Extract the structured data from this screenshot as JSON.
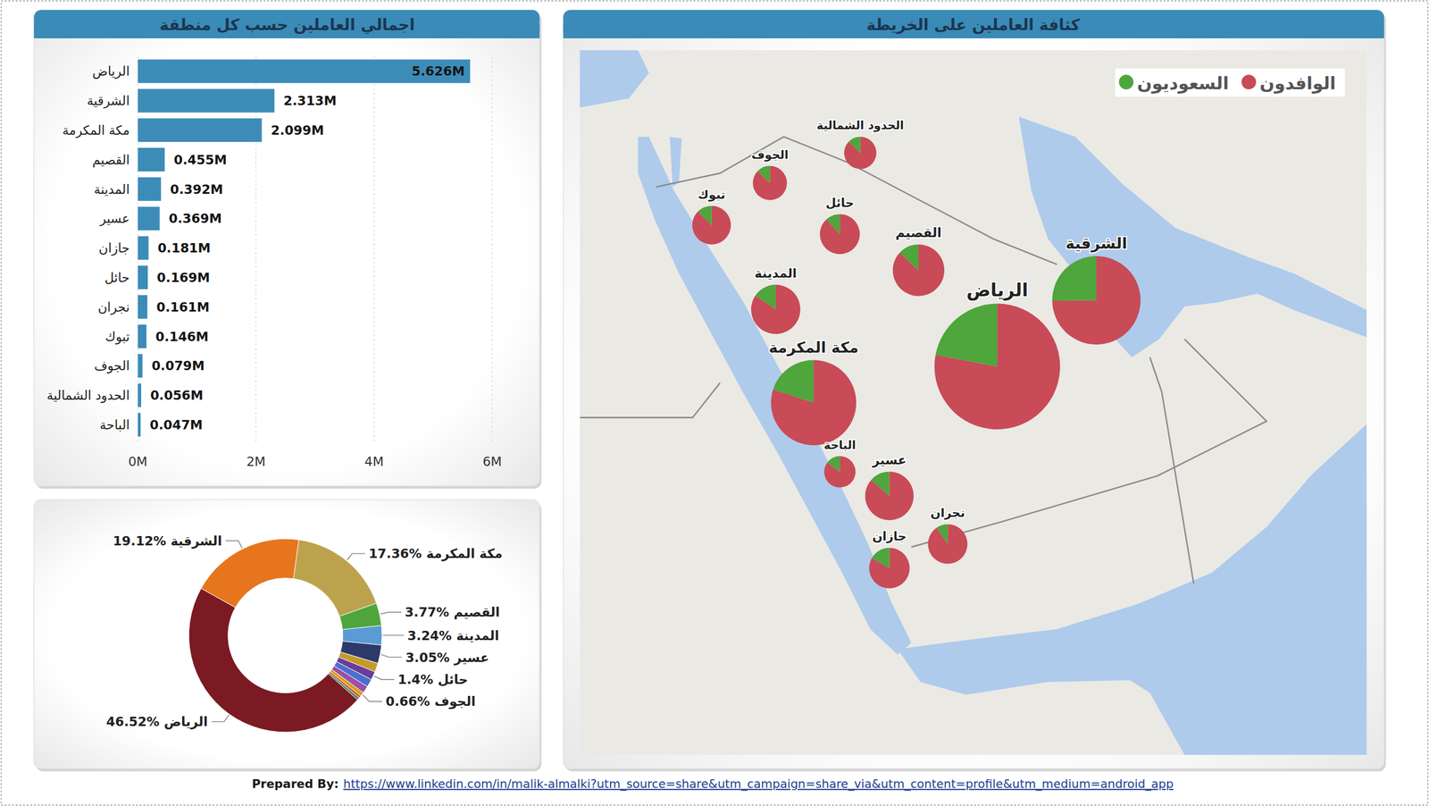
{
  "chart_data": [
    {
      "type": "bar",
      "title": "اجمالي العاملين حسب كل منطقة",
      "orientation": "horizontal",
      "categories": [
        "الرياض",
        "الشرقية",
        "مكة المكرمة",
        "القصيم",
        "المدينة",
        "عسير",
        "جازان",
        "حائل",
        "نجران",
        "تبوك",
        "الجوف",
        "الحدود الشمالية",
        "الباحة"
      ],
      "values": [
        5.626,
        2.313,
        2.099,
        0.455,
        0.392,
        0.369,
        0.181,
        0.169,
        0.161,
        0.146,
        0.079,
        0.056,
        0.047
      ],
      "value_labels": [
        "5.626M",
        "2.313M",
        "2.099M",
        "0.455M",
        "0.392M",
        "0.369M",
        "0.181M",
        "0.169M",
        "0.161M",
        "0.146M",
        "0.079M",
        "0.056M",
        "0.047M"
      ],
      "color": "#3d8cb8",
      "xlim": [
        0,
        6
      ],
      "xticks": [
        {
          "value": 0,
          "label": "0M"
        },
        {
          "value": 2,
          "label": "2M"
        },
        {
          "value": 4,
          "label": "4M"
        },
        {
          "value": 6,
          "label": "6M"
        }
      ],
      "grid": true,
      "data_labels": true
    },
    {
      "type": "donut",
      "categories": [
        "مكة المكرمة",
        "القصيم",
        "المدينة",
        "عسير",
        null,
        "حائل",
        null,
        null,
        "الجوف",
        null,
        null,
        "الرياض",
        "الشرقية"
      ],
      "values": [
        17.36,
        3.77,
        3.24,
        3.05,
        1.5,
        1.4,
        1.33,
        1.21,
        0.66,
        0.46,
        0.39,
        46.52,
        19.12
      ],
      "value_labels": [
        "17.36%",
        "3.77%",
        "3.24%",
        "3.05%",
        null,
        "1.4%",
        null,
        null,
        "0.66%",
        null,
        null,
        "46.52%",
        "19.12%"
      ],
      "colors": [
        "#bda24e",
        "#4ea63c",
        "#5b9bd5",
        "#2b3a6b",
        "#c49a2a",
        "#6a3d9a",
        "#4a6fd0",
        "#9b4fa8",
        "#d4a017",
        "#e05a2b",
        "#1f8a7a",
        "#7b1a22",
        "#e7751d"
      ],
      "data_labels": true
    },
    {
      "type": "map_pie",
      "title": "كثافة العاملين على الخريطة",
      "categories": [
        "الرياض",
        "الشرقية",
        "مكة المكرمة",
        "القصيم",
        "المدينة",
        "عسير",
        "جازان",
        "حائل",
        "نجران",
        "تبوك",
        "الجوف",
        "الحدود الشمالية",
        "الباحة"
      ],
      "lon": [
        46.7,
        50.1,
        40.4,
        44.0,
        39.1,
        43.0,
        43.0,
        41.3,
        45.0,
        36.9,
        38.9,
        42.0,
        41.3
      ],
      "lat": [
        24.7,
        26.9,
        23.5,
        27.9,
        26.6,
        20.4,
        18.0,
        29.1,
        18.8,
        29.4,
        30.8,
        31.8,
        21.2
      ],
      "series": [
        {
          "name": "الوافدون",
          "color": "#c84b57",
          "values": [
            4.39,
            1.73,
            1.68,
            0.4,
            0.33,
            0.32,
            0.15,
            0.15,
            0.146,
            0.128,
            0.069,
            0.049,
            0.04
          ]
        },
        {
          "name": "السعوديون",
          "color": "#4ea63c",
          "values": [
            1.24,
            0.58,
            0.42,
            0.06,
            0.06,
            0.05,
            0.03,
            0.02,
            0.015,
            0.018,
            0.01,
            0.007,
            0.007
          ]
        }
      ],
      "legend": "top-right"
    }
  ],
  "footer": {
    "prefix": "Prepared By:",
    "link": "https://www.linkedin.com/in/malik-almalki?utm_source=share&utm_campaign=share_via&utm_content=profile&utm_medium=android_app"
  }
}
